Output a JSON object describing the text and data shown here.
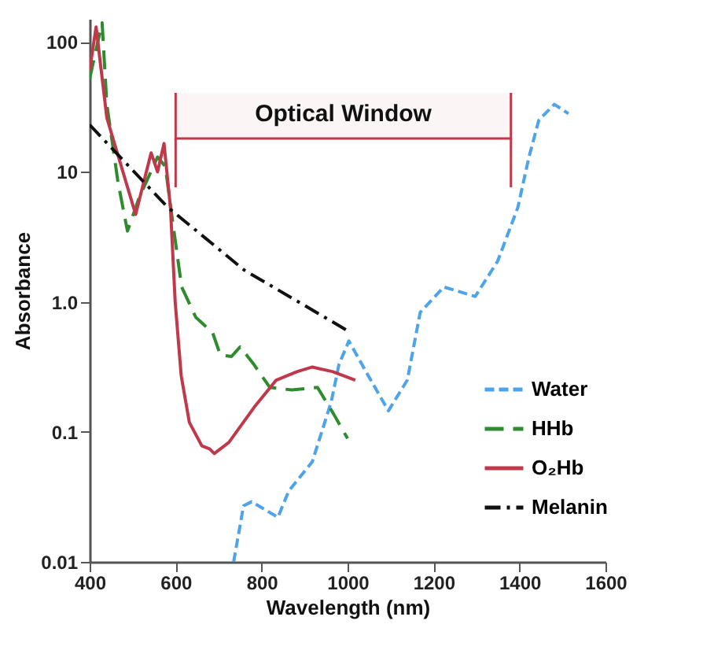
{
  "chart_data": {
    "type": "line",
    "xlabel": "Wavelength (nm)",
    "ylabel": "Absorbance",
    "log": "y",
    "grid": false,
    "legend": "bottom right",
    "marker": "none",
    "xlim": [
      400,
      1600
    ],
    "xticks": [
      400,
      600,
      800,
      1000,
      1200,
      1400,
      1600
    ],
    "ylim": [
      0.01,
      150
    ],
    "yticks": [
      0.01,
      0.1,
      {
        "value": 1,
        "label": "1.0"
      },
      10,
      100
    ],
    "bands": [
      {
        "axis": "x",
        "from": 600,
        "to": 1380,
        "label": "Optical Window",
        "color": "#c0394b"
      }
    ],
    "series": [
      {
        "name": "Water",
        "color": "#4fa3e8",
        "line_style": "dashed",
        "x": [
          735,
          758,
          777,
          838,
          863,
          918,
          962,
          980,
          1003,
          1054,
          1095,
          1139,
          1169,
          1224,
          1297,
          1349,
          1396,
          1422,
          1445,
          1481,
          1514
        ],
        "values": [
          0.01,
          0.027,
          0.029,
          0.022,
          0.035,
          0.059,
          0.17,
          0.33,
          0.5,
          0.25,
          0.145,
          0.25,
          0.83,
          1.3,
          1.1,
          2.05,
          5.3,
          13,
          25,
          33,
          28
        ]
      },
      {
        "name": "HHb",
        "color": "#2e8b2e",
        "line_style": "dashed",
        "x": [
          400,
          429,
          440,
          466,
          488,
          515,
          558,
          576,
          592,
          614,
          647,
          686,
          704,
          730,
          750,
          782,
          819,
          870,
          930,
          966,
          1000
        ],
        "values": [
          52,
          140,
          33,
          8.3,
          3.5,
          6.3,
          13,
          11,
          4.4,
          1.3,
          0.76,
          0.58,
          0.39,
          0.38,
          0.45,
          0.33,
          0.22,
          0.21,
          0.22,
          0.14,
          0.089
        ]
      },
      {
        "name": "O₂Hb",
        "color": "#c0394b",
        "line_style": "solid",
        "x": [
          400,
          415,
          440,
          507,
          543,
          558,
          573,
          588,
          599,
          613,
          632,
          661,
          679,
          690,
          724,
          783,
          834,
          882,
          918,
          966,
          1018
        ],
        "values": [
          60,
          130,
          26,
          4.7,
          14,
          10,
          16.5,
          5.3,
          1.0,
          0.27,
          0.118,
          0.078,
          0.074,
          0.068,
          0.083,
          0.155,
          0.25,
          0.29,
          0.315,
          0.29,
          0.25
        ]
      },
      {
        "name": "Melanin",
        "color": "#111111",
        "line_style": "dashdot",
        "x": [
          400,
          580,
          760,
          1000
        ],
        "values": [
          23,
          5.4,
          1.75,
          0.6
        ]
      }
    ]
  }
}
